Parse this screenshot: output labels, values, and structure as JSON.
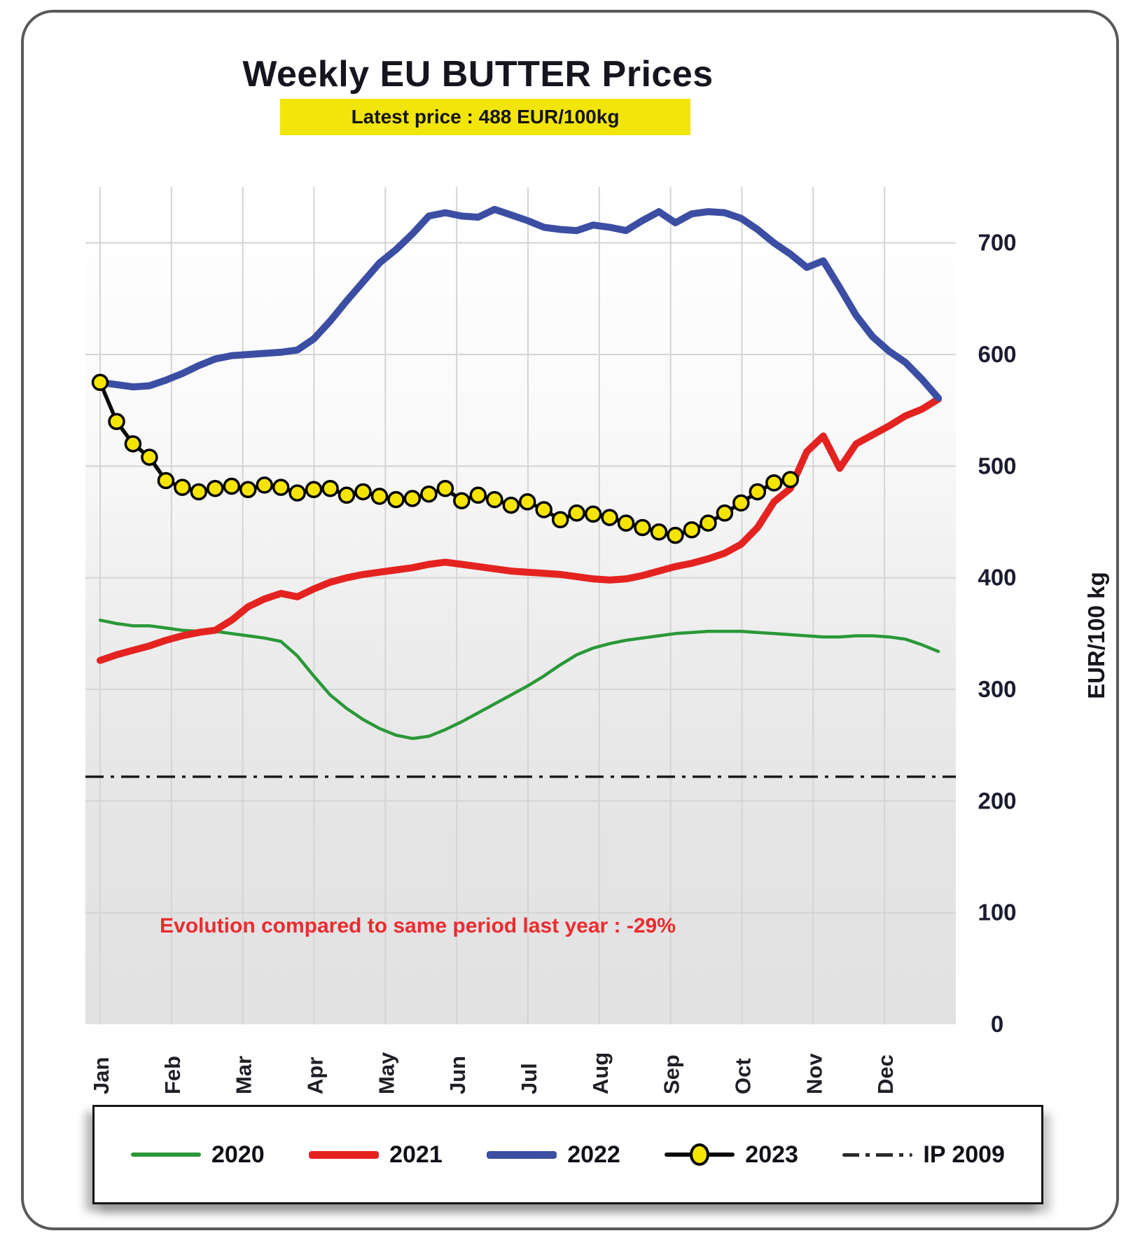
{
  "title": "Weekly EU BUTTER Prices",
  "banner": {
    "text": "Latest price : 488 EUR/100kg",
    "background": "#f2e50a"
  },
  "annotation": {
    "text": "Evolution compared to same period last year : -29%",
    "color": "#ed2b2f"
  },
  "y_axis": {
    "unit_label": "EUR/100 kg",
    "ticks": [
      0,
      100,
      200,
      300,
      400,
      500,
      600,
      700
    ]
  },
  "x_axis": {
    "months": [
      "Jan",
      "Feb",
      "Mar",
      "Apr",
      "May",
      "Jun",
      "Jul",
      "Aug",
      "Sep",
      "Oct",
      "Nov",
      "Dec"
    ]
  },
  "legend": {
    "items": [
      {
        "label": "2020"
      },
      {
        "label": "2021"
      },
      {
        "label": "2022"
      },
      {
        "label": "2023"
      },
      {
        "label": "IP 2009"
      }
    ]
  },
  "chart_data": {
    "type": "line",
    "title": "Weekly EU BUTTER Prices",
    "xlabel": "",
    "ylabel": "EUR/100 kg",
    "x_unit": "week-of-year",
    "ylim": [
      0,
      750
    ],
    "grid": true,
    "legend_position": "bottom",
    "latest_price_eur_per_100kg": 488,
    "evolution_vs_last_year_pct": -29,
    "series": [
      {
        "name": "2020",
        "color": "#2a9838",
        "width": 4.5,
        "values": [
          362,
          359,
          357,
          357,
          355,
          353,
          352,
          352,
          350,
          348,
          346,
          343,
          330,
          312,
          295,
          283,
          273,
          265,
          259,
          256,
          258,
          264,
          271,
          279,
          287,
          295,
          303,
          312,
          322,
          331,
          337,
          341,
          344,
          346,
          348,
          350,
          351,
          352,
          352,
          352,
          351,
          350,
          349,
          348,
          347,
          347,
          348,
          348,
          347,
          345,
          340,
          334
        ]
      },
      {
        "name": "2021",
        "color": "#e42320",
        "width": 10,
        "values": [
          326,
          331,
          335,
          339,
          344,
          348,
          351,
          353,
          362,
          374,
          381,
          386,
          383,
          390,
          396,
          400,
          403,
          405,
          407,
          409,
          412,
          414,
          412,
          410,
          408,
          406,
          405,
          404,
          403,
          401,
          399,
          398,
          399,
          402,
          406,
          410,
          413,
          417,
          422,
          430,
          445,
          468,
          480,
          513,
          527,
          498,
          520,
          528,
          536,
          545,
          551,
          560
        ]
      },
      {
        "name": "2022",
        "color": "#3b4ea3",
        "width": 10,
        "values": [
          575,
          573,
          571,
          572,
          577,
          583,
          590,
          596,
          599,
          600,
          601,
          602,
          604,
          614,
          630,
          648,
          665,
          682,
          694,
          708,
          724,
          727,
          724,
          723,
          730,
          725,
          720,
          714,
          712,
          711,
          716,
          714,
          711,
          720,
          728,
          718,
          726,
          728,
          727,
          722,
          712,
          700,
          690,
          678,
          684,
          660,
          635,
          616,
          603,
          593,
          578,
          561
        ]
      },
      {
        "name": "2023",
        "color": "#0a0a0a",
        "width": 5.5,
        "marker": {
          "shape": "circle",
          "fill": "#f5e400",
          "stroke": "#000000",
          "stroke_width": 3.5,
          "radius": 10.5
        },
        "values": [
          575,
          540,
          520,
          508,
          487,
          481,
          477,
          480,
          482,
          479,
          483,
          481,
          476,
          479,
          480,
          474,
          477,
          473,
          470,
          471,
          475,
          480,
          469,
          474,
          470,
          465,
          468,
          461,
          452,
          458,
          457,
          454,
          449,
          445,
          441,
          438,
          443,
          449,
          458,
          467,
          477,
          485,
          488
        ]
      },
      {
        "name": "IP 2009",
        "color": "#1a1a1a",
        "width": 3.5,
        "dash": "26 10 5 10",
        "constant": 221.75
      }
    ]
  }
}
